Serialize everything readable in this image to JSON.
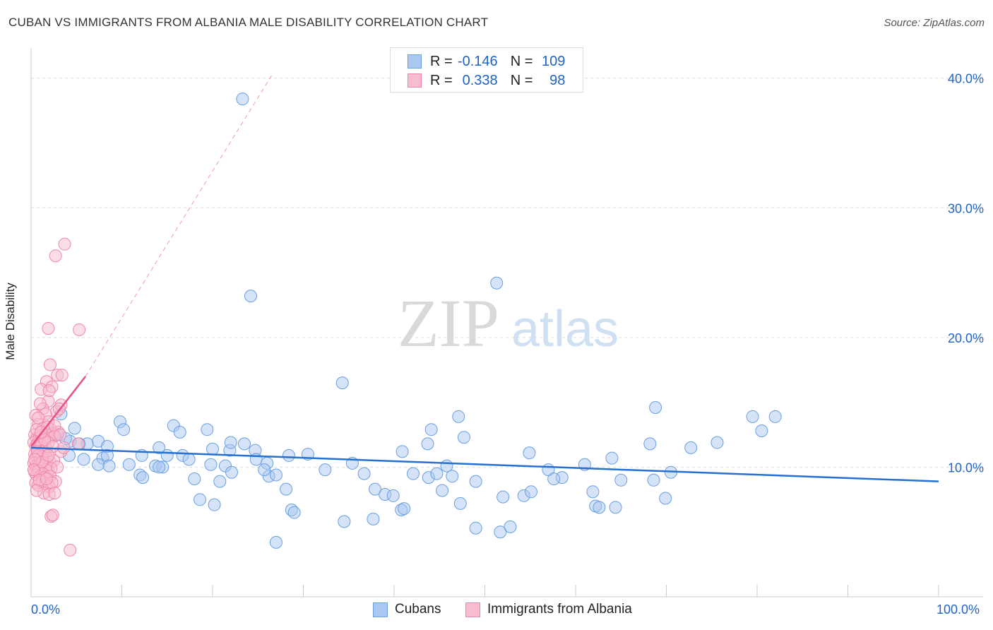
{
  "title": "CUBAN VS IMMIGRANTS FROM ALBANIA MALE DISABILITY CORRELATION CHART",
  "source": "Source: ZipAtlas.com",
  "watermark": {
    "zip": "ZIP",
    "atlas": "atlas"
  },
  "legend_top": {
    "rows": [
      {
        "r_label": "R = ",
        "r_value": "-0.146",
        "n_label": "N = ",
        "n_value": "109",
        "color": "#a9c8f0",
        "border": "#6a9fe0"
      },
      {
        "r_label": "R = ",
        "r_value": "0.338",
        "n_label": "N = ",
        "n_value": "98",
        "color": "#f7bcd0",
        "border": "#ef86a9"
      }
    ]
  },
  "chart_data": {
    "type": "scatter",
    "xlabel": "",
    "ylabel": "Male Disability",
    "xlim": [
      0,
      100
    ],
    "ylim": [
      0,
      42
    ],
    "x_tick_labels": [
      "0.0%",
      "100.0%"
    ],
    "y_ticks": [
      10,
      20,
      30,
      40
    ],
    "y_tick_labels": [
      "10.0%",
      "20.0%",
      "30.0%",
      "40.0%"
    ],
    "grid": "horizontal dashed",
    "legend_position": "bottom",
    "series": [
      {
        "name": "Cubans",
        "color": "#a9c8f0",
        "edge": "#6a9fe0",
        "trend": {
          "x": [
            0,
            100
          ],
          "y": [
            11.5,
            8.9
          ],
          "color": "#2570d0"
        },
        "points": [
          [
            23.3,
            38.4
          ],
          [
            24.2,
            23.2
          ],
          [
            51.3,
            24.2
          ],
          [
            34.3,
            16.5
          ],
          [
            3.3,
            14.1
          ],
          [
            44.1,
            12.9
          ],
          [
            47.1,
            13.9
          ],
          [
            68.8,
            14.6
          ],
          [
            79.5,
            13.9
          ],
          [
            82.0,
            13.9
          ],
          [
            4.8,
            13.0
          ],
          [
            9.8,
            13.5
          ],
          [
            10.2,
            12.9
          ],
          [
            15.7,
            13.2
          ],
          [
            16.4,
            12.7
          ],
          [
            19.4,
            12.9
          ],
          [
            4.3,
            12.0
          ],
          [
            3.8,
            12.2
          ],
          [
            1.5,
            12.6
          ],
          [
            2.9,
            12.5
          ],
          [
            6.2,
            11.8
          ],
          [
            5.3,
            11.8
          ],
          [
            7.4,
            12.0
          ],
          [
            8.4,
            11.6
          ],
          [
            14.1,
            11.5
          ],
          [
            20.0,
            11.4
          ],
          [
            21.9,
            11.3
          ],
          [
            22.0,
            11.9
          ],
          [
            23.5,
            11.8
          ],
          [
            24.7,
            11.3
          ],
          [
            4.2,
            10.9
          ],
          [
            5.8,
            10.6
          ],
          [
            7.9,
            10.7
          ],
          [
            8.4,
            10.9
          ],
          [
            12.2,
            10.9
          ],
          [
            13.7,
            10.1
          ],
          [
            15.0,
            10.9
          ],
          [
            16.7,
            10.9
          ],
          [
            17.4,
            10.6
          ],
          [
            19.8,
            10.2
          ],
          [
            21.4,
            10.1
          ],
          [
            22.1,
            9.6
          ],
          [
            24.8,
            10.6
          ],
          [
            26.0,
            10.3
          ],
          [
            28.4,
            10.9
          ],
          [
            30.5,
            11.0
          ],
          [
            32.4,
            9.8
          ],
          [
            35.4,
            10.3
          ],
          [
            36.7,
            9.5
          ],
          [
            7.4,
            10.2
          ],
          [
            8.6,
            10.1
          ],
          [
            10.8,
            10.2
          ],
          [
            12.0,
            9.4
          ],
          [
            14.5,
            10.0
          ],
          [
            14.1,
            10.0
          ],
          [
            12.3,
            9.2
          ],
          [
            18.0,
            9.1
          ],
          [
            20.8,
            8.9
          ],
          [
            26.2,
            9.3
          ],
          [
            27.0,
            9.4
          ],
          [
            25.7,
            9.8
          ],
          [
            42.1,
            9.5
          ],
          [
            43.8,
            9.2
          ],
          [
            44.7,
            9.5
          ],
          [
            47.3,
            7.2
          ],
          [
            45.3,
            8.2
          ],
          [
            39.0,
            7.9
          ],
          [
            39.9,
            7.8
          ],
          [
            37.9,
            8.3
          ],
          [
            40.8,
            6.7
          ],
          [
            41.1,
            6.8
          ],
          [
            37.7,
            6.0
          ],
          [
            18.6,
            7.5
          ],
          [
            20.2,
            7.1
          ],
          [
            28.1,
            8.3
          ],
          [
            28.7,
            6.7
          ],
          [
            29.0,
            6.5
          ],
          [
            27.0,
            4.2
          ],
          [
            34.5,
            5.8
          ],
          [
            40.9,
            11.2
          ],
          [
            43.7,
            11.8
          ],
          [
            47.7,
            12.3
          ],
          [
            46.4,
            9.3
          ],
          [
            45.8,
            10.1
          ],
          [
            49.0,
            8.9
          ],
          [
            52.0,
            7.7
          ],
          [
            54.3,
            7.8
          ],
          [
            55.1,
            8.1
          ],
          [
            57.0,
            9.8
          ],
          [
            58.5,
            9.2
          ],
          [
            61.0,
            10.2
          ],
          [
            61.9,
            8.1
          ],
          [
            62.2,
            7.0
          ],
          [
            62.6,
            6.9
          ],
          [
            64.4,
            6.9
          ],
          [
            64.0,
            10.7
          ],
          [
            65.0,
            9.0
          ],
          [
            68.2,
            11.8
          ],
          [
            68.6,
            9.0
          ],
          [
            69.9,
            7.6
          ],
          [
            70.5,
            9.6
          ],
          [
            72.7,
            11.5
          ],
          [
            75.6,
            11.9
          ],
          [
            80.5,
            12.8
          ],
          [
            54.9,
            11.1
          ],
          [
            49.0,
            5.3
          ],
          [
            51.7,
            5.0
          ],
          [
            52.8,
            5.4
          ],
          [
            57.6,
            9.1
          ]
        ]
      },
      {
        "name": "Immigrants from Albania",
        "color": "#f7bcd0",
        "edge": "#ef86a9",
        "trend": {
          "x": [
            0,
            6.0
          ],
          "y": [
            11.6,
            17.0
          ],
          "x_ext": [
            6.0,
            26.5
          ],
          "y_ext": [
            17.0,
            40.2
          ],
          "color": "#e7528a"
        },
        "points": [
          [
            3.7,
            27.2
          ],
          [
            2.7,
            26.3
          ],
          [
            1.9,
            20.7
          ],
          [
            5.3,
            20.6
          ],
          [
            2.1,
            17.9
          ],
          [
            2.9,
            17.1
          ],
          [
            3.4,
            17.1
          ],
          [
            1.7,
            16.6
          ],
          [
            1.1,
            16.0
          ],
          [
            2.3,
            16.2
          ],
          [
            1.9,
            15.1
          ],
          [
            1.3,
            14.5
          ],
          [
            2.8,
            14.3
          ],
          [
            3.3,
            14.8
          ],
          [
            1.6,
            14.1
          ],
          [
            0.5,
            14.0
          ],
          [
            1.9,
            13.5
          ],
          [
            0.8,
            13.3
          ],
          [
            1.3,
            13.0
          ],
          [
            2.2,
            12.9
          ],
          [
            3.0,
            12.7
          ],
          [
            0.4,
            12.5
          ],
          [
            0.6,
            12.2
          ],
          [
            0.9,
            12.3
          ],
          [
            1.2,
            12.0
          ],
          [
            1.6,
            12.5
          ],
          [
            2.0,
            12.3
          ],
          [
            2.4,
            12.6
          ],
          [
            2.6,
            12.4
          ],
          [
            0.3,
            11.9
          ],
          [
            0.5,
            11.6
          ],
          [
            0.7,
            11.8
          ],
          [
            0.9,
            11.5
          ],
          [
            1.1,
            11.7
          ],
          [
            1.4,
            11.3
          ],
          [
            1.7,
            11.4
          ],
          [
            1.9,
            11.9
          ],
          [
            3.3,
            11.2
          ],
          [
            0.4,
            11.0
          ],
          [
            0.6,
            10.8
          ],
          [
            0.8,
            10.9
          ],
          [
            1.0,
            10.6
          ],
          [
            1.2,
            10.8
          ],
          [
            1.5,
            10.5
          ],
          [
            1.8,
            10.7
          ],
          [
            2.1,
            10.4
          ],
          [
            2.5,
            10.5
          ],
          [
            0.3,
            10.3
          ],
          [
            0.5,
            10.1
          ],
          [
            0.7,
            10.0
          ],
          [
            0.9,
            10.2
          ],
          [
            1.1,
            9.9
          ],
          [
            1.3,
            10.1
          ],
          [
            1.6,
            9.8
          ],
          [
            1.9,
            9.7
          ],
          [
            2.2,
            9.9
          ],
          [
            0.4,
            9.6
          ],
          [
            0.6,
            9.4
          ],
          [
            0.8,
            9.7
          ],
          [
            1.0,
            9.3
          ],
          [
            1.3,
            9.5
          ],
          [
            1.5,
            9.2
          ],
          [
            2.1,
            9.3
          ],
          [
            2.7,
            8.9
          ],
          [
            0.5,
            8.8
          ],
          [
            0.8,
            8.6
          ],
          [
            1.2,
            8.9
          ],
          [
            1.6,
            8.7
          ],
          [
            2.0,
            8.5
          ],
          [
            2.3,
            8.8
          ],
          [
            1.4,
            8.0
          ],
          [
            2.0,
            7.9
          ],
          [
            2.6,
            8.0
          ],
          [
            2.2,
            6.2
          ],
          [
            2.4,
            6.3
          ],
          [
            4.3,
            3.6
          ],
          [
            5.2,
            11.8
          ],
          [
            0.6,
            12.9
          ],
          [
            1.8,
            13.1
          ],
          [
            2.6,
            13.2
          ],
          [
            1.0,
            14.9
          ],
          [
            2.0,
            15.9
          ],
          [
            3.1,
            14.5
          ],
          [
            0.7,
            11.2
          ],
          [
            1.2,
            10.4
          ],
          [
            1.5,
            12.1
          ],
          [
            0.9,
            9.0
          ],
          [
            2.9,
            10.0
          ],
          [
            3.2,
            12.5
          ],
          [
            0.4,
            10.6
          ],
          [
            1.7,
            9.1
          ],
          [
            2.4,
            11.6
          ],
          [
            0.6,
            8.2
          ],
          [
            1.1,
            12.7
          ],
          [
            1.9,
            10.9
          ],
          [
            0.8,
            13.8
          ],
          [
            3.6,
            11.5
          ],
          [
            0.3,
            9.8
          ]
        ]
      }
    ]
  }
}
